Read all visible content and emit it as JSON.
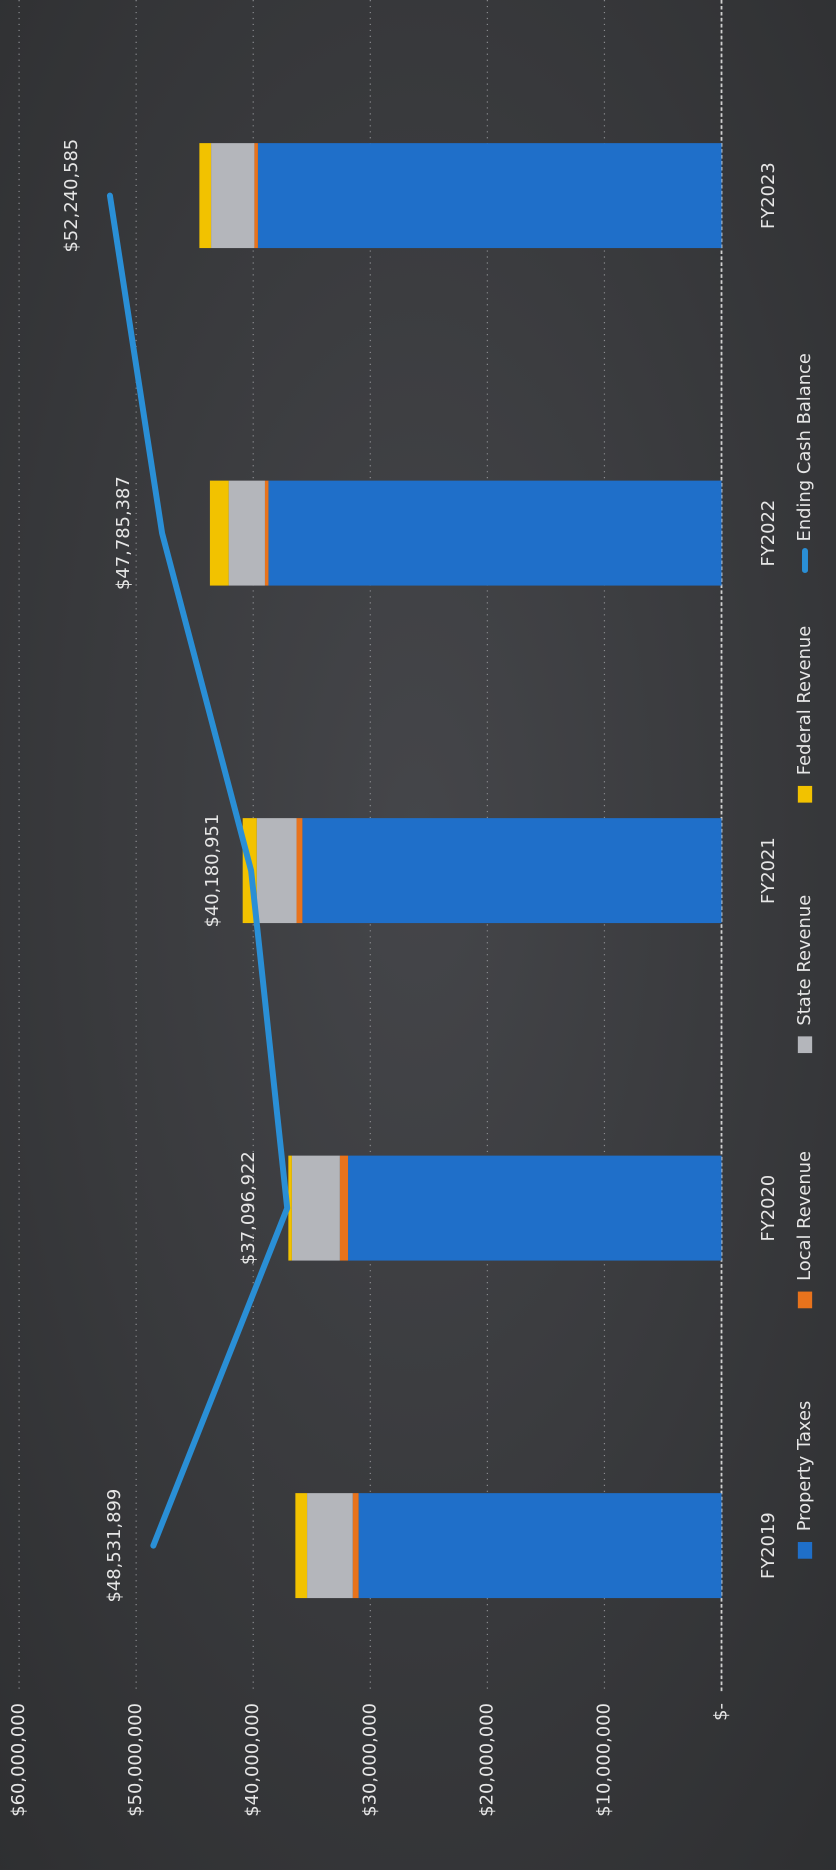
{
  "chart_data": {
    "type": "bar",
    "stacked": true,
    "categories": [
      "FY2019",
      "FY2020",
      "FY2021",
      "FY2022",
      "FY2023"
    ],
    "series": [
      {
        "name": "Property Taxes",
        "color": "#1f6fc9",
        "values": [
          31000000,
          31900000,
          35800000,
          38700000,
          39600000
        ]
      },
      {
        "name": "Local Revenue",
        "color": "#e8731c",
        "values": [
          500000,
          700000,
          500000,
          300000,
          300000
        ]
      },
      {
        "name": "State Revenue",
        "color": "#b4b6bb",
        "values": [
          3900000,
          4100000,
          3400000,
          3100000,
          3700000
        ]
      },
      {
        "name": "Federal Revenue",
        "color": "#f2c200",
        "values": [
          1000000,
          300000,
          1200000,
          1600000,
          1000000
        ]
      },
      {
        "name": "Ending Cash Balance",
        "type": "line",
        "color": "#2a8fd6",
        "values": [
          48531899,
          37096922,
          40180951,
          47785387,
          52240585
        ],
        "value_labels": [
          "$48,531,899",
          "$37,096,922",
          "$40,180,951",
          "$47,785,387",
          "$52,240,585"
        ]
      }
    ],
    "ylim": [
      0,
      60000000
    ],
    "yticks": [
      {
        "value": 0,
        "label": "$-"
      },
      {
        "value": 10000000,
        "label": "$10,000,000"
      },
      {
        "value": 20000000,
        "label": "$20,000,000"
      },
      {
        "value": 30000000,
        "label": "$30,000,000"
      },
      {
        "value": 40000000,
        "label": "$40,000,000"
      },
      {
        "value": 50000000,
        "label": "$50,000,000"
      },
      {
        "value": 60000000,
        "label": "$60,000,000"
      }
    ],
    "grid": true,
    "legend": "bottom"
  }
}
